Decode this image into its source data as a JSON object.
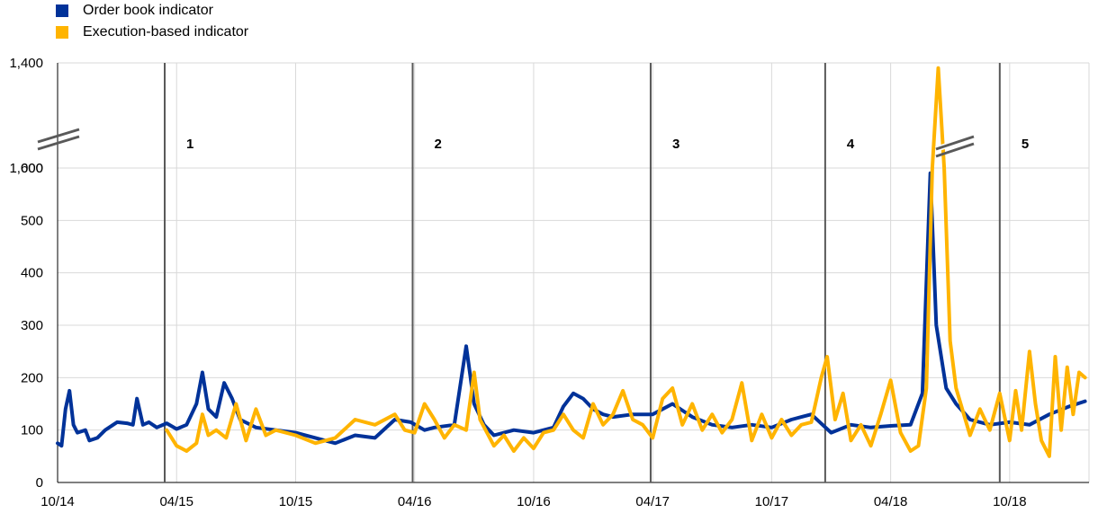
{
  "chart_data": {
    "type": "line",
    "legend": [
      {
        "label": "Order book indicator",
        "color": "#003299"
      },
      {
        "label": "Execution-based indicator",
        "color": "#FFB400"
      }
    ],
    "x_ticks": [
      "10/14",
      "04/15",
      "10/15",
      "04/16",
      "10/16",
      "04/17",
      "10/17",
      "04/18",
      "10/18"
    ],
    "y_ticks": [
      "0",
      "100",
      "200",
      "300",
      "400",
      "500",
      "600",
      "1,000",
      "1,400"
    ],
    "axis_break": {
      "from": 600,
      "to": 1000
    },
    "markers": [
      {
        "label": "1",
        "x": 5.4
      },
      {
        "label": "2",
        "x": 17.9
      },
      {
        "label": "3",
        "x": 29.9
      },
      {
        "label": "4",
        "x": 38.7
      },
      {
        "label": "5",
        "x": 47.5
      }
    ],
    "x_unit": "months since 10/14",
    "series": [
      {
        "name": "Order book indicator",
        "color": "#003299",
        "points": [
          [
            0,
            75
          ],
          [
            0.2,
            70
          ],
          [
            0.4,
            140
          ],
          [
            0.6,
            175
          ],
          [
            0.8,
            110
          ],
          [
            1.0,
            95
          ],
          [
            1.4,
            100
          ],
          [
            1.6,
            80
          ],
          [
            2.0,
            85
          ],
          [
            2.4,
            100
          ],
          [
            3.0,
            115
          ],
          [
            3.5,
            113
          ],
          [
            3.8,
            110
          ],
          [
            4.0,
            160
          ],
          [
            4.3,
            110
          ],
          [
            4.6,
            115
          ],
          [
            5.0,
            105
          ],
          [
            5.5,
            113
          ],
          [
            6.0,
            102
          ],
          [
            6.5,
            110
          ],
          [
            7.0,
            150
          ],
          [
            7.3,
            210
          ],
          [
            7.6,
            140
          ],
          [
            8.0,
            125
          ],
          [
            8.4,
            190
          ],
          [
            8.8,
            160
          ],
          [
            9.2,
            120
          ],
          [
            10,
            105
          ],
          [
            11,
            100
          ],
          [
            12,
            95
          ],
          [
            13,
            85
          ],
          [
            14,
            75
          ],
          [
            15,
            90
          ],
          [
            16,
            85
          ],
          [
            17,
            120
          ],
          [
            17.8,
            115
          ],
          [
            18.5,
            100
          ],
          [
            19,
            105
          ],
          [
            20,
            110
          ],
          [
            20.6,
            260
          ],
          [
            21,
            150
          ],
          [
            21.5,
            110
          ],
          [
            22,
            90
          ],
          [
            23,
            100
          ],
          [
            24,
            95
          ],
          [
            25,
            105
          ],
          [
            25.5,
            145
          ],
          [
            26,
            170
          ],
          [
            26.5,
            160
          ],
          [
            27,
            140
          ],
          [
            27.5,
            130
          ],
          [
            28,
            125
          ],
          [
            29,
            130
          ],
          [
            30,
            130
          ],
          [
            31,
            150
          ],
          [
            32,
            125
          ],
          [
            33,
            110
          ],
          [
            34,
            105
          ],
          [
            35,
            110
          ],
          [
            36,
            105
          ],
          [
            37,
            120
          ],
          [
            38,
            130
          ],
          [
            39,
            95
          ],
          [
            40,
            110
          ],
          [
            41,
            105
          ],
          [
            42,
            108
          ],
          [
            43,
            110
          ],
          [
            43.6,
            170
          ],
          [
            44,
            590
          ],
          [
            44.3,
            300
          ],
          [
            44.8,
            180
          ],
          [
            45.3,
            150
          ],
          [
            46,
            120
          ],
          [
            47,
            110
          ],
          [
            48,
            115
          ],
          [
            49,
            110
          ],
          [
            50,
            130
          ],
          [
            51,
            145
          ],
          [
            51.8,
            155
          ]
        ]
      },
      {
        "name": "Execution-based indicator",
        "color": "#FFB400",
        "points": [
          [
            5.5,
            100
          ],
          [
            6.0,
            70
          ],
          [
            6.5,
            60
          ],
          [
            7.0,
            75
          ],
          [
            7.3,
            130
          ],
          [
            7.6,
            90
          ],
          [
            8.0,
            100
          ],
          [
            8.5,
            85
          ],
          [
            9,
            150
          ],
          [
            9.5,
            80
          ],
          [
            10,
            140
          ],
          [
            10.5,
            90
          ],
          [
            11,
            100
          ],
          [
            12,
            90
          ],
          [
            13,
            75
          ],
          [
            14,
            85
          ],
          [
            15,
            120
          ],
          [
            16,
            110
          ],
          [
            17,
            130
          ],
          [
            17.5,
            100
          ],
          [
            18,
            95
          ],
          [
            18.5,
            150
          ],
          [
            19,
            120
          ],
          [
            19.5,
            85
          ],
          [
            20,
            110
          ],
          [
            20.6,
            100
          ],
          [
            21,
            210
          ],
          [
            21.3,
            120
          ],
          [
            22,
            70
          ],
          [
            22.5,
            90
          ],
          [
            23,
            60
          ],
          [
            23.5,
            85
          ],
          [
            24,
            65
          ],
          [
            24.5,
            95
          ],
          [
            25,
            100
          ],
          [
            25.5,
            130
          ],
          [
            26,
            100
          ],
          [
            26.5,
            85
          ],
          [
            27,
            150
          ],
          [
            27.5,
            110
          ],
          [
            28,
            130
          ],
          [
            28.5,
            175
          ],
          [
            29,
            120
          ],
          [
            29.5,
            110
          ],
          [
            30,
            85
          ],
          [
            30.5,
            160
          ],
          [
            31,
            180
          ],
          [
            31.5,
            110
          ],
          [
            32,
            150
          ],
          [
            32.5,
            100
          ],
          [
            33,
            130
          ],
          [
            33.5,
            95
          ],
          [
            34,
            120
          ],
          [
            34.5,
            190
          ],
          [
            35,
            80
          ],
          [
            35.5,
            130
          ],
          [
            36,
            85
          ],
          [
            36.5,
            120
          ],
          [
            37,
            90
          ],
          [
            37.5,
            110
          ],
          [
            38,
            115
          ],
          [
            38.5,
            200
          ],
          [
            38.8,
            240
          ],
          [
            39.2,
            120
          ],
          [
            39.6,
            170
          ],
          [
            40,
            80
          ],
          [
            40.5,
            110
          ],
          [
            41,
            70
          ],
          [
            41.5,
            130
          ],
          [
            42,
            195
          ],
          [
            42.5,
            95
          ],
          [
            43,
            60
          ],
          [
            43.4,
            70
          ],
          [
            43.8,
            180
          ],
          [
            44.1,
            750
          ],
          [
            44.4,
            1360
          ],
          [
            44.7,
            620
          ],
          [
            45,
            270
          ],
          [
            45.3,
            180
          ],
          [
            46,
            90
          ],
          [
            46.5,
            140
          ],
          [
            47,
            100
          ],
          [
            47.5,
            170
          ],
          [
            48,
            80
          ],
          [
            48.3,
            175
          ],
          [
            48.6,
            100
          ],
          [
            49,
            250
          ],
          [
            49.3,
            150
          ],
          [
            49.6,
            80
          ],
          [
            50,
            50
          ],
          [
            50.3,
            240
          ],
          [
            50.6,
            100
          ],
          [
            50.9,
            220
          ],
          [
            51.2,
            130
          ],
          [
            51.5,
            210
          ],
          [
            51.8,
            200
          ]
        ]
      }
    ]
  }
}
